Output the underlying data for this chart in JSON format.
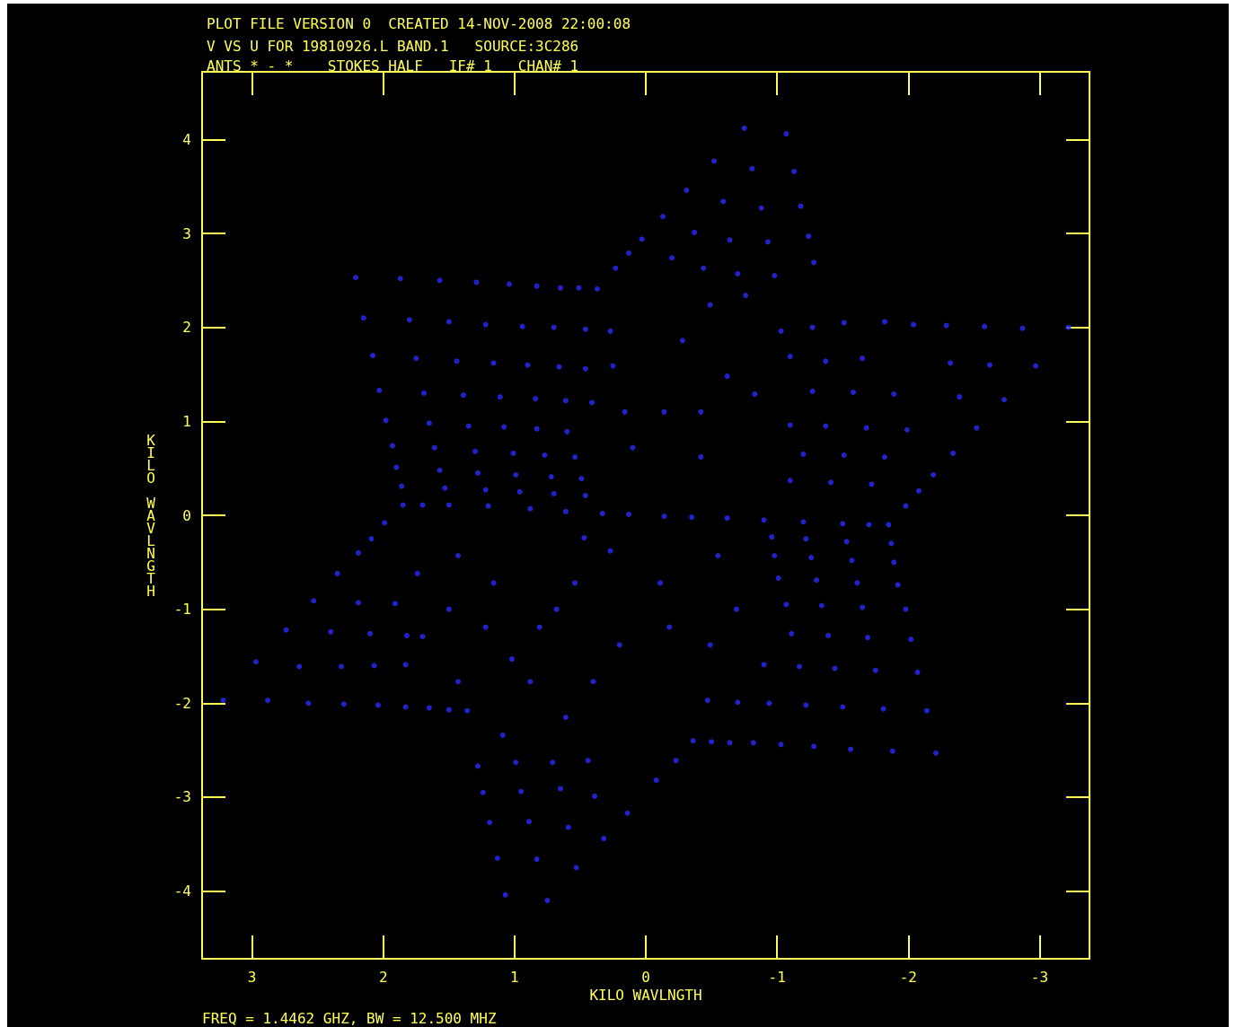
{
  "chart_data": {
    "type": "scatter",
    "title": "PLOT FILE VERSION 0  CREATED 14-NOV-2008 22:00:08",
    "subtitle": "V VS U FOR 19810926.L BAND.1   SOURCE:3C286\nANTS * - *    STOKES HALF   IF# 1   CHAN# 1",
    "xlabel": "KILO WAVLNGTH",
    "ylabel": "KILO WAVLNGTH",
    "annotations": [
      "FREQ = 1.4462 GHZ, BW = 12.500 MHZ"
    ],
    "xlim": [
      3.38,
      -3.38
    ],
    "ylim": [
      -4.72,
      4.72
    ],
    "xticks": [
      3,
      2,
      1,
      0,
      -1,
      -2,
      -3
    ],
    "yticks": [
      -4,
      -3,
      -2,
      -1,
      0,
      1,
      2,
      3,
      4
    ],
    "grid": false,
    "marker": "circle",
    "series": [
      {
        "color": "#2a2aff",
        "x": [
          -0.75,
          -1.07,
          -0.52,
          -0.81,
          -1.13,
          -0.31,
          -0.59,
          -0.88,
          -1.18,
          -0.13,
          -0.37,
          -0.64,
          -0.93,
          -1.24,
          0.03,
          0.13,
          0.23,
          -0.2,
          -0.44,
          -0.7,
          -0.98,
          -1.28,
          2.21,
          1.87,
          1.57,
          1.29,
          1.04,
          0.83,
          0.65,
          0.51,
          0.37,
          2.15,
          1.8,
          1.5,
          1.22,
          0.94,
          0.7,
          0.46,
          0.27,
          2.08,
          1.75,
          1.44,
          1.16,
          0.9,
          0.66,
          0.46,
          0.25,
          2.03,
          1.69,
          1.39,
          1.11,
          0.84,
          0.61,
          0.41,
          1.98,
          1.65,
          1.35,
          1.08,
          0.83,
          0.6,
          1.93,
          1.61,
          1.3,
          1.01,
          0.77,
          0.54,
          1.9,
          1.57,
          1.28,
          0.99,
          0.72,
          0.49,
          1.86,
          1.53,
          1.22,
          0.96,
          0.7,
          0.46,
          1.85,
          1.7,
          1.5,
          1.2,
          0.88,
          0.61,
          0.33,
          0.13,
          1.99,
          2.09,
          2.19,
          2.35,
          2.53,
          2.74,
          2.97,
          3.22,
          2.88,
          2.57,
          2.3,
          2.04,
          1.83,
          1.65,
          1.5,
          1.36,
          2.64,
          2.32,
          2.07,
          1.83,
          2.4,
          2.1,
          1.82,
          2.19,
          1.91,
          1.07,
          0.75,
          1.13,
          0.83,
          0.53,
          1.19,
          0.89,
          0.59,
          1.24,
          0.95,
          0.65,
          0.39,
          1.28,
          0.99,
          0.71,
          0.44,
          0.14,
          0.32,
          -0.08,
          -0.23,
          -3.22,
          -2.87,
          -2.58,
          -2.29,
          -2.04,
          -1.82,
          -2.97,
          -2.62,
          -2.32,
          -2.73,
          -2.39,
          -2.52,
          -2.34,
          -2.19,
          -2.08,
          -1.98,
          -2.21,
          -1.88,
          -1.56,
          -1.28,
          -1.03,
          -0.82,
          -0.64,
          -0.5,
          -0.36,
          -2.14,
          -1.81,
          -1.5,
          -1.22,
          -0.94,
          -0.7,
          -0.47,
          -2.07,
          -1.75,
          -1.44,
          -1.17,
          -0.9,
          -2.02,
          -1.69,
          -1.39,
          -1.11,
          -1.98,
          -1.65,
          -1.34,
          -1.07,
          -1.92,
          -1.61,
          -1.3,
          -1.01,
          -1.89,
          -1.57,
          -1.26,
          -0.98,
          -1.87,
          -1.53,
          -1.22,
          -0.96,
          -1.85,
          -1.7,
          -1.5,
          -1.2,
          -0.9,
          -0.62,
          -0.35,
          -0.14,
          0.1,
          0.16,
          -0.42,
          -0.83,
          0.27,
          0.68,
          1.02,
          -0.11,
          -0.18,
          -1.65,
          -1.37,
          -1.1,
          -1.89,
          -1.58,
          -1.27,
          -1.99,
          -1.68,
          -1.37,
          -1.1,
          -1.82,
          -1.51,
          -1.2,
          -1.72,
          -1.41,
          -1.1,
          -1.51,
          -1.27,
          -1.03,
          -0.76,
          -0.49,
          -0.28,
          -0.62,
          1.7,
          1.5,
          1.74,
          1.43,
          1.16,
          1.22,
          0.88,
          0.61,
          0.81,
          0.54,
          1.43,
          1.09,
          0.4,
          0.2,
          -0.42,
          -0.14,
          0.47,
          -0.55,
          -0.69,
          -0.49
        ],
        "values": [
          4.12,
          4.06,
          3.77,
          3.69,
          3.66,
          3.46,
          3.34,
          3.27,
          3.29,
          3.18,
          3.01,
          2.93,
          2.91,
          2.97,
          2.94,
          2.79,
          2.63,
          2.74,
          2.63,
          2.57,
          2.55,
          2.69,
          2.53,
          2.52,
          2.5,
          2.48,
          2.46,
          2.44,
          2.42,
          2.42,
          2.41,
          2.1,
          2.08,
          2.06,
          2.03,
          2.01,
          2.0,
          1.98,
          1.96,
          1.7,
          1.67,
          1.64,
          1.62,
          1.6,
          1.58,
          1.56,
          1.59,
          1.33,
          1.3,
          1.28,
          1.26,
          1.24,
          1.22,
          1.2,
          1.01,
          0.98,
          0.95,
          0.94,
          0.92,
          0.89,
          0.74,
          0.72,
          0.68,
          0.66,
          0.64,
          0.62,
          0.51,
          0.48,
          0.45,
          0.43,
          0.41,
          0.39,
          0.31,
          0.29,
          0.27,
          0.25,
          0.23,
          0.21,
          0.11,
          0.11,
          0.11,
          0.1,
          0.07,
          0.04,
          0.02,
          0.01,
          -0.08,
          -0.25,
          -0.4,
          -0.62,
          -0.91,
          -1.22,
          -1.56,
          -1.97,
          -1.97,
          -2.0,
          -2.01,
          -2.02,
          -2.04,
          -2.05,
          -2.07,
          -2.08,
          -1.61,
          -1.61,
          -1.6,
          -1.59,
          -1.24,
          -1.26,
          -1.28,
          -0.93,
          -0.94,
          -4.04,
          -4.1,
          -3.65,
          -3.66,
          -3.75,
          -3.27,
          -3.26,
          -3.32,
          -2.95,
          -2.94,
          -2.91,
          -2.99,
          -2.67,
          -2.63,
          -2.63,
          -2.61,
          -3.17,
          -3.44,
          -2.82,
          -2.61,
          2.0,
          1.99,
          2.01,
          2.02,
          2.03,
          2.06,
          1.59,
          1.6,
          1.62,
          1.23,
          1.26,
          0.93,
          0.66,
          0.43,
          0.26,
          0.1,
          -2.53,
          -2.51,
          -2.49,
          -2.46,
          -2.44,
          -2.42,
          -2.42,
          -2.41,
          -2.4,
          -2.08,
          -2.06,
          -2.04,
          -2.02,
          -2.0,
          -1.99,
          -1.97,
          -1.67,
          -1.65,
          -1.63,
          -1.61,
          -1.59,
          -1.32,
          -1.3,
          -1.28,
          -1.26,
          -1.0,
          -0.98,
          -0.96,
          -0.95,
          -0.74,
          -0.72,
          -0.69,
          -0.67,
          -0.5,
          -0.48,
          -0.45,
          -0.43,
          -0.3,
          -0.28,
          -0.25,
          -0.23,
          -0.1,
          -0.1,
          -0.09,
          -0.07,
          -0.05,
          -0.03,
          -0.02,
          -0.01,
          0.72,
          1.1,
          0.62,
          1.29,
          -0.38,
          -1.0,
          -1.53,
          -0.72,
          -1.19,
          1.67,
          1.64,
          1.69,
          1.29,
          1.31,
          1.32,
          0.91,
          0.93,
          0.95,
          0.96,
          0.62,
          0.64,
          0.65,
          0.33,
          0.35,
          0.37,
          2.05,
          2.0,
          1.96,
          2.34,
          2.24,
          1.86,
          1.48,
          -1.29,
          -1.0,
          -0.62,
          -0.43,
          -0.72,
          -1.19,
          -1.77,
          -2.15,
          -1.19,
          -0.72,
          -1.77,
          -2.34,
          -1.77,
          -1.38,
          1.1,
          1.1,
          -0.24,
          -0.43,
          -1.0,
          -1.38
        ]
      }
    ]
  }
}
